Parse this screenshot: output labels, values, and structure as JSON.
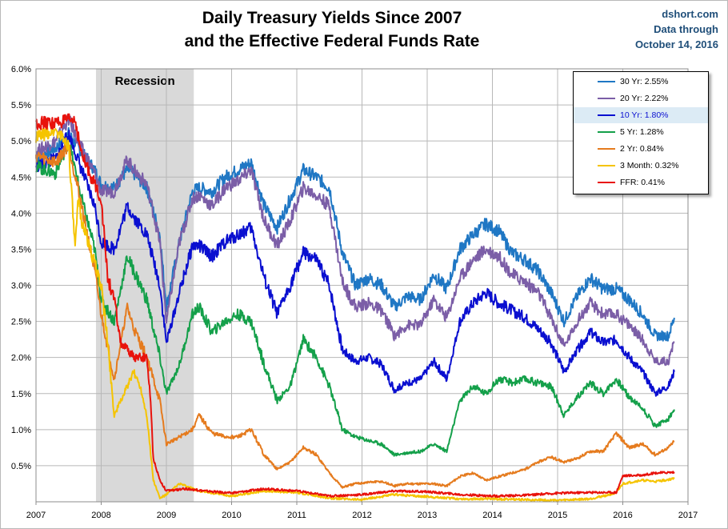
{
  "header": {
    "title_line1": "Daily Treasury Yields Since 2007",
    "title_line2": "and the Effective Federal Funds Rate",
    "source_line1": "dshort.com",
    "source_line2": "Data through",
    "source_line3": "October 14, 2016"
  },
  "chart_data": {
    "type": "line",
    "title": "Daily Treasury Yields Since 2007 and the Effective Federal Funds Rate",
    "xlabel": "",
    "ylabel": "",
    "xlim": [
      2007,
      2017
    ],
    "ylim": [
      0,
      6.0
    ],
    "x_ticks": [
      "2007",
      "2008",
      "2009",
      "2010",
      "2011",
      "2012",
      "2013",
      "2014",
      "2015",
      "2016",
      "2017"
    ],
    "y_ticks": [
      "0.5%",
      "1.0%",
      "1.5%",
      "2.0%",
      "2.5%",
      "3.0%",
      "3.5%",
      "4.0%",
      "4.5%",
      "5.0%",
      "5.5%",
      "6.0%"
    ],
    "grid": "on",
    "legend_position": "top-right",
    "shaded_region": {
      "label": "Recession",
      "start": 2007.92,
      "end": 2009.42
    },
    "series": [
      {
        "name": "30 Yr: 2.55%",
        "color": "#1f77c4",
        "x": [
          2007.0,
          2007.3,
          2007.5,
          2007.7,
          2007.9,
          2008.0,
          2008.2,
          2008.4,
          2008.5,
          2008.7,
          2008.9,
          2009.0,
          2009.2,
          2009.4,
          2009.5,
          2009.7,
          2009.9,
          2010.1,
          2010.3,
          2010.5,
          2010.7,
          2010.9,
          2011.1,
          2011.3,
          2011.5,
          2011.7,
          2011.9,
          2012.1,
          2012.3,
          2012.5,
          2012.7,
          2012.9,
          2013.1,
          2013.3,
          2013.5,
          2013.7,
          2013.9,
          2014.1,
          2014.3,
          2014.5,
          2014.7,
          2014.9,
          2015.1,
          2015.3,
          2015.5,
          2015.7,
          2015.9,
          2016.1,
          2016.3,
          2016.5,
          2016.7,
          2016.79
        ],
        "values": [
          4.75,
          4.9,
          5.1,
          4.85,
          4.6,
          4.4,
          4.35,
          4.6,
          4.55,
          4.35,
          3.7,
          2.7,
          3.6,
          4.3,
          4.35,
          4.3,
          4.5,
          4.6,
          4.7,
          4.1,
          3.8,
          4.2,
          4.6,
          4.5,
          4.35,
          3.45,
          3.0,
          3.1,
          3.0,
          2.7,
          2.85,
          2.8,
          3.15,
          2.95,
          3.5,
          3.7,
          3.85,
          3.75,
          3.45,
          3.35,
          3.2,
          2.9,
          2.5,
          2.85,
          3.1,
          2.95,
          2.95,
          2.8,
          2.6,
          2.3,
          2.3,
          2.55
        ]
      },
      {
        "name": "20 Yr: 2.22%",
        "color": "#7b5ea7",
        "x": [
          2007.0,
          2007.3,
          2007.5,
          2007.7,
          2007.9,
          2008.0,
          2008.2,
          2008.4,
          2008.5,
          2008.7,
          2008.9,
          2009.0,
          2009.2,
          2009.4,
          2009.5,
          2009.7,
          2009.9,
          2010.1,
          2010.3,
          2010.5,
          2010.7,
          2010.9,
          2011.1,
          2011.3,
          2011.5,
          2011.7,
          2011.9,
          2012.1,
          2012.3,
          2012.5,
          2012.7,
          2012.9,
          2013.1,
          2013.3,
          2013.5,
          2013.7,
          2013.9,
          2014.1,
          2014.3,
          2014.5,
          2014.7,
          2014.9,
          2015.1,
          2015.3,
          2015.5,
          2015.7,
          2015.9,
          2016.1,
          2016.3,
          2016.5,
          2016.7,
          2016.79
        ],
        "values": [
          4.85,
          5.0,
          5.3,
          4.9,
          4.55,
          4.3,
          4.3,
          4.75,
          4.6,
          4.4,
          3.6,
          2.5,
          3.6,
          4.2,
          4.25,
          4.1,
          4.35,
          4.45,
          4.6,
          3.9,
          3.55,
          3.9,
          4.35,
          4.25,
          4.1,
          3.05,
          2.7,
          2.75,
          2.65,
          2.3,
          2.45,
          2.45,
          2.8,
          2.55,
          3.1,
          3.35,
          3.5,
          3.4,
          3.15,
          3.05,
          2.9,
          2.55,
          2.15,
          2.5,
          2.75,
          2.6,
          2.6,
          2.45,
          2.25,
          1.95,
          1.95,
          2.22
        ]
      },
      {
        "name": "10 Yr: 1.80%",
        "color": "#0a0fd0",
        "x": [
          2007.0,
          2007.3,
          2007.5,
          2007.7,
          2007.9,
          2008.0,
          2008.2,
          2008.4,
          2008.5,
          2008.7,
          2008.9,
          2009.0,
          2009.2,
          2009.4,
          2009.5,
          2009.7,
          2009.9,
          2010.1,
          2010.3,
          2010.5,
          2010.7,
          2010.9,
          2011.1,
          2011.3,
          2011.5,
          2011.7,
          2011.9,
          2012.1,
          2012.3,
          2012.5,
          2012.7,
          2012.9,
          2013.1,
          2013.3,
          2013.5,
          2013.7,
          2013.9,
          2014.1,
          2014.3,
          2014.5,
          2014.7,
          2014.9,
          2015.1,
          2015.3,
          2015.5,
          2015.7,
          2015.9,
          2016.1,
          2016.3,
          2016.5,
          2016.7,
          2016.79
        ],
        "values": [
          4.65,
          4.75,
          5.1,
          4.6,
          4.1,
          3.6,
          3.5,
          4.1,
          3.95,
          3.7,
          3.0,
          2.2,
          2.9,
          3.55,
          3.55,
          3.4,
          3.6,
          3.7,
          3.8,
          3.1,
          2.6,
          3.0,
          3.45,
          3.35,
          3.0,
          2.1,
          1.95,
          2.0,
          1.9,
          1.55,
          1.65,
          1.7,
          1.95,
          1.7,
          2.5,
          2.75,
          2.9,
          2.75,
          2.65,
          2.55,
          2.4,
          2.2,
          1.8,
          2.1,
          2.35,
          2.2,
          2.25,
          2.0,
          1.8,
          1.5,
          1.6,
          1.8
        ]
      },
      {
        "name": "5 Yr: 1.28%",
        "color": "#14a04a",
        "x": [
          2007.0,
          2007.3,
          2007.5,
          2007.7,
          2007.9,
          2008.0,
          2008.2,
          2008.4,
          2008.5,
          2008.7,
          2008.9,
          2009.0,
          2009.2,
          2009.4,
          2009.5,
          2009.7,
          2009.9,
          2010.1,
          2010.3,
          2010.5,
          2010.7,
          2010.9,
          2011.1,
          2011.3,
          2011.5,
          2011.7,
          2011.9,
          2012.1,
          2012.3,
          2012.5,
          2012.7,
          2012.9,
          2013.1,
          2013.3,
          2013.5,
          2013.7,
          2013.9,
          2014.1,
          2014.3,
          2014.5,
          2014.7,
          2014.9,
          2015.1,
          2015.3,
          2015.5,
          2015.7,
          2015.9,
          2016.1,
          2016.3,
          2016.5,
          2016.7,
          2016.79
        ],
        "values": [
          4.65,
          4.55,
          5.0,
          4.2,
          3.5,
          2.8,
          2.5,
          3.4,
          3.2,
          2.8,
          2.0,
          1.5,
          1.9,
          2.6,
          2.7,
          2.35,
          2.5,
          2.6,
          2.5,
          1.9,
          1.4,
          1.6,
          2.25,
          2.0,
          1.6,
          1.0,
          0.9,
          0.85,
          0.8,
          0.65,
          0.68,
          0.7,
          0.8,
          0.7,
          1.4,
          1.6,
          1.5,
          1.7,
          1.65,
          1.7,
          1.65,
          1.6,
          1.2,
          1.45,
          1.65,
          1.5,
          1.7,
          1.45,
          1.3,
          1.05,
          1.15,
          1.28
        ]
      },
      {
        "name": "2 Yr: 0.84%",
        "color": "#e57b1e",
        "x": [
          2007.0,
          2007.3,
          2007.5,
          2007.7,
          2007.9,
          2008.0,
          2008.2,
          2008.4,
          2008.5,
          2008.7,
          2008.9,
          2009.0,
          2009.2,
          2009.4,
          2009.5,
          2009.7,
          2009.9,
          2010.1,
          2010.3,
          2010.5,
          2010.7,
          2010.9,
          2011.1,
          2011.3,
          2011.5,
          2011.7,
          2011.9,
          2012.1,
          2012.3,
          2012.5,
          2012.7,
          2012.9,
          2013.1,
          2013.3,
          2013.5,
          2013.7,
          2013.9,
          2014.1,
          2014.3,
          2014.5,
          2014.7,
          2014.9,
          2015.1,
          2015.3,
          2015.5,
          2015.7,
          2015.9,
          2016.1,
          2016.3,
          2016.5,
          2016.7,
          2016.79
        ],
        "values": [
          4.8,
          4.7,
          4.95,
          4.1,
          3.2,
          2.6,
          1.7,
          2.7,
          2.4,
          2.0,
          1.4,
          0.8,
          0.9,
          1.0,
          1.2,
          0.95,
          0.9,
          0.9,
          1.0,
          0.65,
          0.45,
          0.55,
          0.75,
          0.65,
          0.4,
          0.2,
          0.25,
          0.27,
          0.28,
          0.22,
          0.25,
          0.25,
          0.25,
          0.22,
          0.35,
          0.4,
          0.3,
          0.35,
          0.4,
          0.45,
          0.55,
          0.62,
          0.55,
          0.6,
          0.7,
          0.7,
          0.95,
          0.75,
          0.8,
          0.65,
          0.75,
          0.84
        ]
      },
      {
        "name": "3 Month: 0.32%",
        "color": "#f5c400",
        "x": [
          2007.0,
          2007.3,
          2007.5,
          2007.6,
          2007.65,
          2007.7,
          2007.9,
          2008.0,
          2008.1,
          2008.2,
          2008.35,
          2008.5,
          2008.6,
          2008.7,
          2008.8,
          2008.9,
          2009.0,
          2009.2,
          2009.5,
          2010.0,
          2010.5,
          2011.0,
          2011.5,
          2012.0,
          2012.5,
          2013.0,
          2013.5,
          2014.0,
          2014.5,
          2015.0,
          2015.5,
          2015.9,
          2016.0,
          2016.3,
          2016.5,
          2016.79
        ],
        "values": [
          5.05,
          5.15,
          4.95,
          3.5,
          4.2,
          3.9,
          3.3,
          3.0,
          2.2,
          1.2,
          1.5,
          1.8,
          1.6,
          1.2,
          0.3,
          0.05,
          0.1,
          0.25,
          0.15,
          0.08,
          0.15,
          0.13,
          0.05,
          0.03,
          0.1,
          0.07,
          0.04,
          0.04,
          0.03,
          0.02,
          0.04,
          0.12,
          0.25,
          0.3,
          0.28,
          0.32
        ]
      },
      {
        "name": "FFR: 0.41%",
        "color": "#e8120c",
        "x": [
          2007.0,
          2007.3,
          2007.6,
          2007.7,
          2007.85,
          2008.0,
          2008.1,
          2008.2,
          2008.3,
          2008.5,
          2008.7,
          2008.75,
          2008.8,
          2008.9,
          2009.0,
          2009.3,
          2009.6,
          2010.0,
          2010.5,
          2011.0,
          2011.5,
          2012.0,
          2012.5,
          2013.0,
          2013.5,
          2014.0,
          2014.5,
          2015.0,
          2015.5,
          2015.9,
          2016.0,
          2016.3,
          2016.5,
          2016.79
        ],
        "values": [
          5.25,
          5.25,
          5.3,
          4.8,
          4.5,
          4.2,
          3.1,
          2.8,
          2.2,
          2.0,
          2.0,
          1.5,
          0.6,
          0.3,
          0.15,
          0.18,
          0.15,
          0.12,
          0.18,
          0.15,
          0.08,
          0.1,
          0.15,
          0.14,
          0.1,
          0.08,
          0.09,
          0.12,
          0.13,
          0.13,
          0.36,
          0.37,
          0.4,
          0.41
        ]
      }
    ]
  }
}
